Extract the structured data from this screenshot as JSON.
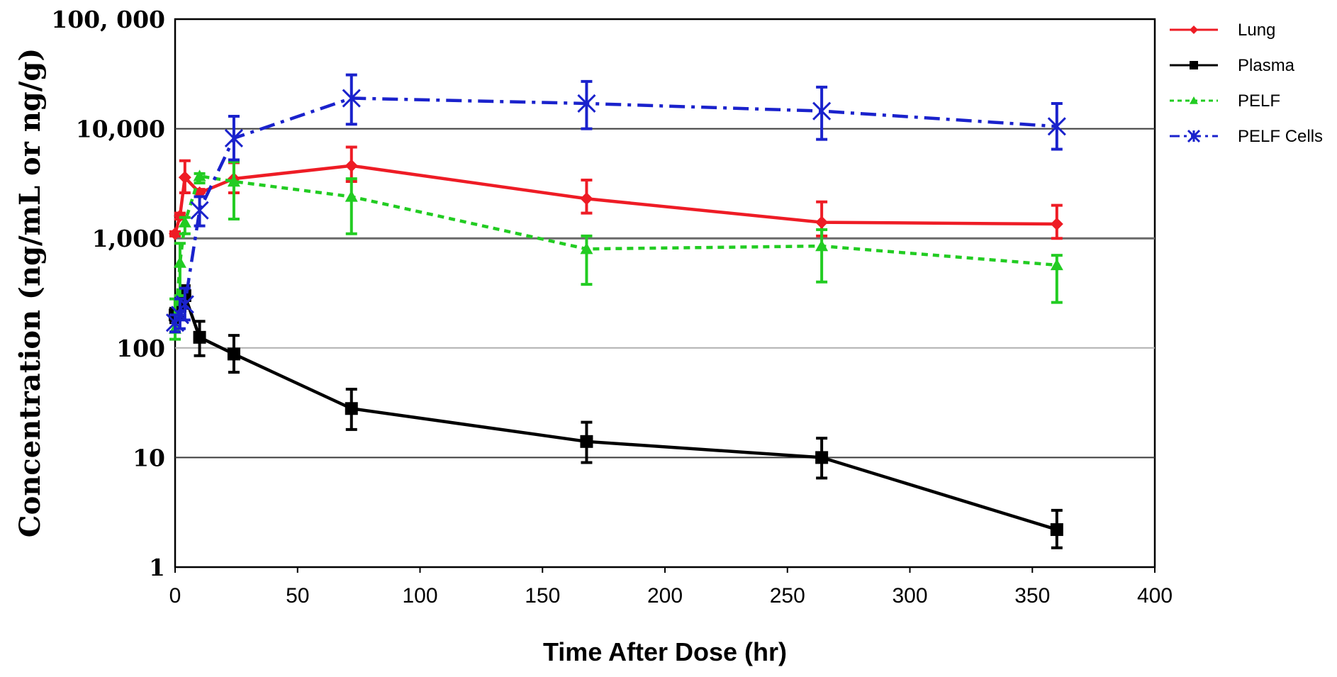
{
  "chart_data": {
    "type": "line",
    "xlabel": "Time After Dose (hr)",
    "ylabel": "Concentration (ng/mL or ng/g)",
    "xlim": [
      0,
      400
    ],
    "ylim": [
      1,
      100000
    ],
    "y_scale": "log",
    "x_ticks": [
      0,
      50,
      100,
      150,
      200,
      250,
      300,
      350,
      400
    ],
    "x_tick_labels": [
      "0",
      "50",
      "100",
      "150",
      "200",
      "250",
      "300",
      "350",
      "400"
    ],
    "y_ticks": [
      1,
      10,
      100,
      1000,
      10000,
      100000
    ],
    "y_tick_labels": [
      "1",
      "10",
      "100",
      "1,000",
      "10,000",
      "100, 000"
    ],
    "grid": "horizontal",
    "legend_position": "top-right",
    "series": [
      {
        "name": "Lung",
        "color": "#ee1c25",
        "line_style": "solid",
        "marker": "diamond",
        "x": [
          0,
          2,
          4,
          10,
          24,
          72,
          168,
          264,
          360
        ],
        "y": [
          1100,
          1600,
          3600,
          2600,
          3500,
          4600,
          2300,
          1400,
          1350
        ],
        "err_upper": [
          1150,
          1700,
          5100,
          2800,
          4900,
          6800,
          3400,
          2150,
          2000
        ],
        "err_lower": [
          1050,
          1500,
          2600,
          2400,
          2600,
          3300,
          1700,
          1050,
          1000
        ]
      },
      {
        "name": "Plasma",
        "color": "#000000",
        "line_style": "solid",
        "marker": "square",
        "x": [
          0,
          2,
          4,
          10,
          24,
          72,
          168,
          264,
          360
        ],
        "y": [
          200,
          240,
          300,
          125,
          88,
          28,
          14,
          10,
          2.2
        ],
        "err_upper": [
          230,
          300,
          370,
          175,
          130,
          42,
          21,
          15,
          3.3
        ],
        "err_lower": [
          170,
          190,
          230,
          85,
          60,
          18,
          9,
          6.5,
          1.5
        ]
      },
      {
        "name": "PELF",
        "color": "#22cc22",
        "line_style": "dotted",
        "marker": "triangle",
        "x": [
          0,
          2,
          4,
          10,
          24,
          72,
          168,
          264,
          360
        ],
        "y": [
          150,
          600,
          1400,
          3700,
          3300,
          2400,
          800,
          850,
          570
        ],
        "err_upper": [
          280,
          900,
          1550,
          3900,
          5000,
          3500,
          1050,
          1200,
          700
        ],
        "err_lower": [
          120,
          300,
          1100,
          3200,
          1500,
          1100,
          380,
          400,
          260
        ]
      },
      {
        "name": "PELF Cells",
        "color": "#1a22cc",
        "line_style": "dashdot",
        "marker": "x",
        "x": [
          0,
          2,
          4,
          10,
          24,
          72,
          168,
          264,
          360
        ],
        "y": [
          170,
          200,
          250,
          1800,
          8200,
          19000,
          17000,
          14500,
          10500
        ],
        "err_upper": [
          200,
          280,
          350,
          2400,
          13000,
          31000,
          27000,
          24000,
          17000
        ],
        "err_lower": [
          140,
          150,
          180,
          1300,
          5200,
          11000,
          10000,
          8000,
          6500
        ]
      }
    ]
  }
}
